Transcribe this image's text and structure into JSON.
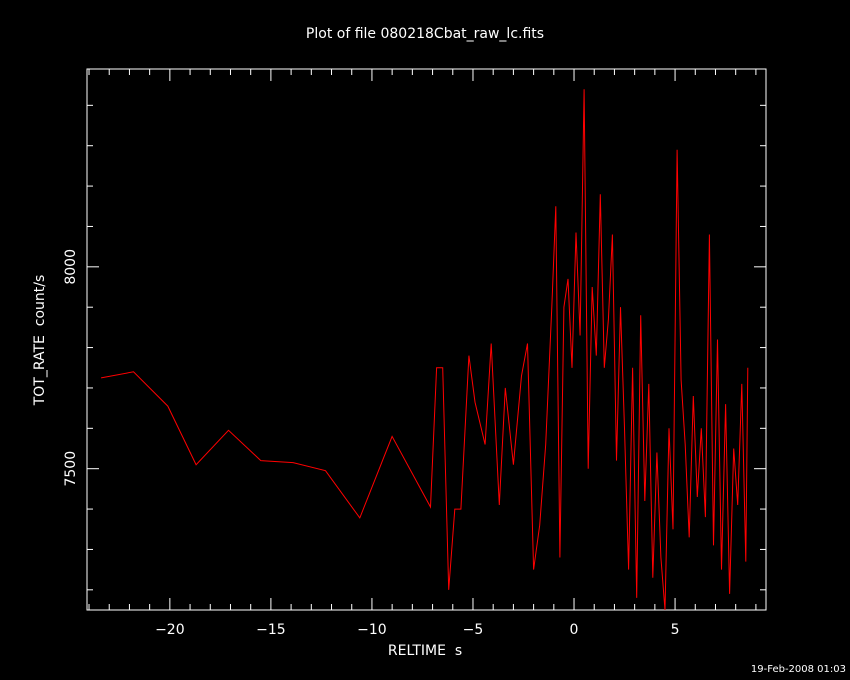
{
  "chart_data": {
    "type": "line",
    "title": "Plot of file 080218Cbat_raw_lc.fits",
    "xlabel": "RELTIME  s",
    "ylabel": "TOT_RATE  count/s",
    "footer": "19-Feb-2008 01:03",
    "xlim": [
      -24.1,
      9.5
    ],
    "ylim": [
      7150,
      8490
    ],
    "x_ticks": [
      -20,
      -15,
      -10,
      -5,
      0,
      5
    ],
    "x_tick_labels": [
      "−20",
      "−15",
      "−10",
      "−5",
      "0",
      "5"
    ],
    "y_ticks": [
      7500,
      8000
    ],
    "y_tick_labels": [
      "7500",
      "8000"
    ],
    "line_color": "#ff0000",
    "axis_color": "#ffffff",
    "series": [
      {
        "points": [
          [
            -23.4,
            7725
          ],
          [
            -21.8,
            7740
          ],
          [
            -20.1,
            7655
          ],
          [
            -18.7,
            7510
          ],
          [
            -17.1,
            7595
          ],
          [
            -15.5,
            7520
          ],
          [
            -13.9,
            7515
          ],
          [
            -12.3,
            7495
          ],
          [
            -10.6,
            7378
          ],
          [
            -9.0,
            7580
          ],
          [
            -7.1,
            7405
          ],
          [
            -6.8,
            7750
          ],
          [
            -6.5,
            7750
          ],
          [
            -6.2,
            7200
          ],
          [
            -5.9,
            7400
          ],
          [
            -5.6,
            7400
          ],
          [
            -5.2,
            7780
          ],
          [
            -4.9,
            7665
          ],
          [
            -4.4,
            7560
          ],
          [
            -4.1,
            7810
          ],
          [
            -3.7,
            7410
          ],
          [
            -3.4,
            7700
          ],
          [
            -3.0,
            7510
          ],
          [
            -2.6,
            7730
          ],
          [
            -2.3,
            7810
          ],
          [
            -2.0,
            7250
          ],
          [
            -1.7,
            7360
          ],
          [
            -1.4,
            7560
          ],
          [
            -1.1,
            7900
          ],
          [
            -0.9,
            8150
          ],
          [
            -0.7,
            7280
          ],
          [
            -0.5,
            7900
          ],
          [
            -0.3,
            7970
          ],
          [
            -0.1,
            7750
          ],
          [
            0.1,
            8085
          ],
          [
            0.3,
            7830
          ],
          [
            0.5,
            8440
          ],
          [
            0.7,
            7500
          ],
          [
            0.9,
            7950
          ],
          [
            1.1,
            7780
          ],
          [
            1.3,
            8180
          ],
          [
            1.5,
            7750
          ],
          [
            1.7,
            7870
          ],
          [
            1.9,
            8080
          ],
          [
            2.1,
            7520
          ],
          [
            2.3,
            7900
          ],
          [
            2.5,
            7600
          ],
          [
            2.7,
            7250
          ],
          [
            2.9,
            7750
          ],
          [
            3.1,
            7180
          ],
          [
            3.3,
            7880
          ],
          [
            3.5,
            7420
          ],
          [
            3.7,
            7710
          ],
          [
            3.9,
            7230
          ],
          [
            4.1,
            7540
          ],
          [
            4.3,
            7280
          ],
          [
            4.5,
            7150
          ],
          [
            4.7,
            7600
          ],
          [
            4.9,
            7350
          ],
          [
            5.1,
            8290
          ],
          [
            5.3,
            7720
          ],
          [
            5.5,
            7560
          ],
          [
            5.7,
            7330
          ],
          [
            5.9,
            7680
          ],
          [
            6.1,
            7430
          ],
          [
            6.3,
            7600
          ],
          [
            6.5,
            7380
          ],
          [
            6.7,
            8080
          ],
          [
            6.9,
            7310
          ],
          [
            7.1,
            7820
          ],
          [
            7.3,
            7250
          ],
          [
            7.5,
            7660
          ],
          [
            7.7,
            7190
          ],
          [
            7.9,
            7550
          ],
          [
            8.1,
            7410
          ],
          [
            8.3,
            7710
          ],
          [
            8.5,
            7270
          ],
          [
            8.6,
            7750
          ]
        ]
      }
    ]
  }
}
